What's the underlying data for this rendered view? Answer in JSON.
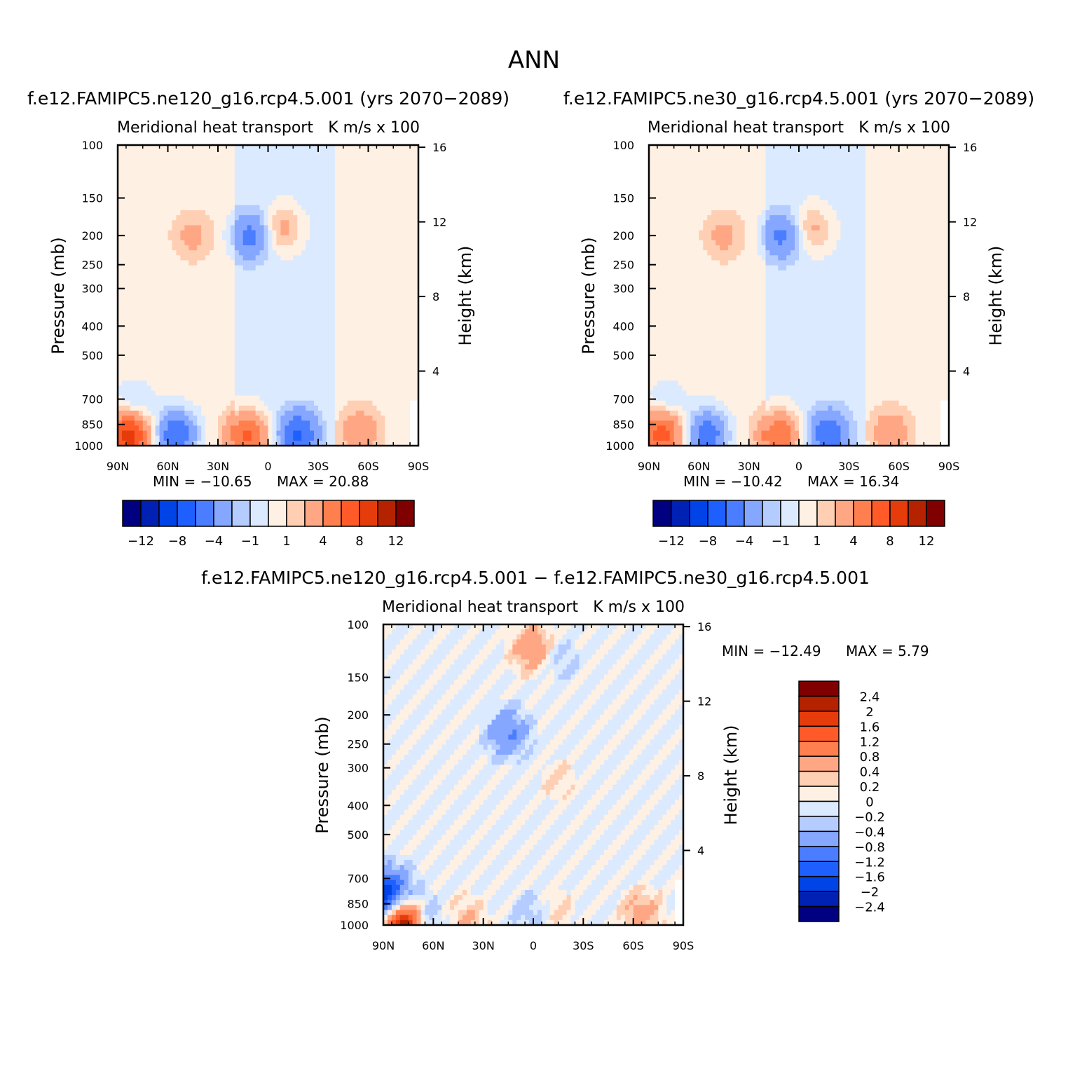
{
  "page_title": "ANN",
  "colors": {
    "neg_scale": [
      "#000080",
      "#0021b4",
      "#0043e6",
      "#1e5fff",
      "#4a7dff",
      "#86a7ff",
      "#b4ccff",
      "#dbeaff"
    ],
    "pos_scale": [
      "#fff0e4",
      "#ffcfb4",
      "#ffa784",
      "#ff7f4f",
      "#ff5a28",
      "#e63c0c",
      "#b42200",
      "#800000"
    ],
    "missing": "#ffffff"
  },
  "chart_data": [
    {
      "type": "heatmap",
      "panel_title": "f.e12.FAMIPC5.ne120_g16.rcp4.5.001 (yrs 2070−2089)",
      "left_title": "Meridional heat transport",
      "right_title": "K m/s x 100",
      "xlabel": "",
      "ylabel": "Pressure (mb)",
      "ylabel_right": "Height (km)",
      "x_ticks": [
        "90N",
        "60N",
        "30N",
        "0",
        "30S",
        "60S",
        "90S"
      ],
      "y_ticks": [
        "100",
        "150",
        "200",
        "250",
        "300",
        "400",
        "500",
        "700",
        "850",
        "1000"
      ],
      "y_ticks_right": [
        "16",
        "12",
        "8",
        "4"
      ],
      "ylim": [
        1000,
        100
      ],
      "min_label": "MIN = −10.65",
      "max_label": "MAX =   20.88",
      "min": -10.65,
      "max": 20.88,
      "colorbar_labels": [
        "−12",
        "−8",
        "−4",
        "−1",
        "1",
        "4",
        "8",
        "12"
      ],
      "features": [
        {
          "lat": -8,
          "p": 190,
          "v": 3.0
        },
        {
          "lat": 10,
          "p": 200,
          "v": -4.5
        },
        {
          "lat": 45,
          "p": 200,
          "v": 2.0
        },
        {
          "lat": -55,
          "p": 900,
          "v": 3.0
        },
        {
          "lat": -18,
          "p": 915,
          "v": -6.0
        },
        {
          "lat": 12,
          "p": 925,
          "v": 7.0
        },
        {
          "lat": 55,
          "p": 915,
          "v": -6.5
        },
        {
          "lat": 83,
          "p": 920,
          "v": 9.0
        },
        {
          "lat": 80,
          "p": 740,
          "v": -2.0
        }
      ]
    },
    {
      "type": "heatmap",
      "panel_title": "f.e12.FAMIPC5.ne30_g16.rcp4.5.001 (yrs 2070−2089)",
      "left_title": "Meridional heat transport",
      "right_title": "K m/s x 100",
      "xlabel": "",
      "ylabel": "Pressure (mb)",
      "ylabel_right": "Height (km)",
      "x_ticks": [
        "90N",
        "60N",
        "30N",
        "0",
        "30S",
        "60S",
        "90S"
      ],
      "y_ticks": [
        "100",
        "150",
        "200",
        "250",
        "300",
        "400",
        "500",
        "700",
        "850",
        "1000"
      ],
      "y_ticks_right": [
        "16",
        "12",
        "8",
        "4"
      ],
      "ylim": [
        1000,
        100
      ],
      "min_label": "MIN = −10.42",
      "max_label": "MAX =   16.34",
      "min": -10.42,
      "max": 16.34,
      "colorbar_labels": [
        "−12",
        "−8",
        "−4",
        "−1",
        "1",
        "4",
        "8",
        "12"
      ],
      "features": [
        {
          "lat": -8,
          "p": 190,
          "v": 2.8
        },
        {
          "lat": 10,
          "p": 200,
          "v": -4.2
        },
        {
          "lat": 45,
          "p": 200,
          "v": 2.0
        },
        {
          "lat": -55,
          "p": 900,
          "v": 2.8
        },
        {
          "lat": -18,
          "p": 915,
          "v": -5.5
        },
        {
          "lat": 12,
          "p": 925,
          "v": 6.5
        },
        {
          "lat": 55,
          "p": 915,
          "v": -6.0
        },
        {
          "lat": 82,
          "p": 900,
          "v": 7.0
        },
        {
          "lat": 80,
          "p": 740,
          "v": -2.0
        }
      ]
    },
    {
      "type": "heatmap",
      "panel_title": "f.e12.FAMIPC5.ne120_g16.rcp4.5.001 − f.e12.FAMIPC5.ne30_g16.rcp4.5.001",
      "left_title": "Meridional heat transport",
      "right_title": "K m/s x 100",
      "xlabel": "",
      "ylabel": "Pressure (mb)",
      "ylabel_right": "Height (km)",
      "x_ticks": [
        "90N",
        "60N",
        "30N",
        "0",
        "30S",
        "60S",
        "90S"
      ],
      "y_ticks": [
        "100",
        "150",
        "200",
        "250",
        "300",
        "400",
        "500",
        "700",
        "850",
        "1000"
      ],
      "y_ticks_right": [
        "16",
        "12",
        "8",
        "4"
      ],
      "ylim": [
        1000,
        100
      ],
      "min_label": "MIN = −12.49",
      "max_label": "MAX =    5.79",
      "min": -12.49,
      "max": 5.79,
      "colorbar_labels": [
        "2.4",
        "2",
        "1.6",
        "1.2",
        "0.8",
        "0.4",
        "0.2",
        "0",
        "−0.2",
        "−0.4",
        "−0.8",
        "−1.2",
        "−1.6",
        "−2",
        "−2.4"
      ],
      "features": [
        {
          "lat": 0,
          "p": 120,
          "v": 0.8
        },
        {
          "lat": 15,
          "p": 230,
          "v": -0.8
        },
        {
          "lat": -15,
          "p": 130,
          "v": -0.3
        },
        {
          "lat": -15,
          "p": 330,
          "v": 0.2
        },
        {
          "lat": -65,
          "p": 920,
          "v": 0.6
        },
        {
          "lat": -12,
          "p": 900,
          "v": 0.3
        },
        {
          "lat": 0,
          "p": 930,
          "v": -0.4
        },
        {
          "lat": 40,
          "p": 960,
          "v": 0.4
        },
        {
          "lat": 68,
          "p": 960,
          "v": -0.8
        },
        {
          "lat": 78,
          "p": 990,
          "v": 2.8
        },
        {
          "lat": 85,
          "p": 760,
          "v": -1.0
        },
        {
          "lat": 90,
          "p": 850,
          "v": -1.2
        }
      ]
    }
  ]
}
